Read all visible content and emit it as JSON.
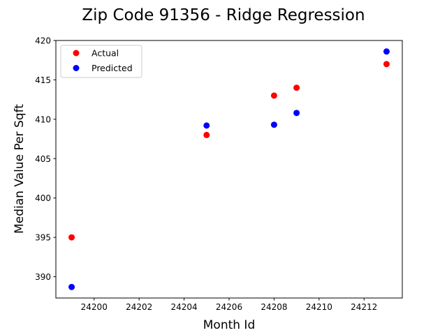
{
  "chart_data": {
    "type": "scatter",
    "title": "Zip Code 91356 - Ridge Regression",
    "xlabel": "Month Id",
    "ylabel": "Median Value Per Sqft",
    "xlim": [
      24198.3,
      24213.7
    ],
    "ylim": [
      387.3,
      420.0
    ],
    "xticks": [
      24200,
      24202,
      24204,
      24206,
      24208,
      24210,
      24212
    ],
    "yticks": [
      390,
      395,
      400,
      405,
      410,
      415,
      420
    ],
    "grid": false,
    "legend_position": "upper-left",
    "series": [
      {
        "name": "Actual",
        "color": "#ff0000",
        "points": [
          {
            "x": 24199,
            "y": 395.0
          },
          {
            "x": 24205,
            "y": 408.0
          },
          {
            "x": 24208,
            "y": 413.0
          },
          {
            "x": 24209,
            "y": 414.0
          },
          {
            "x": 24213,
            "y": 417.0
          }
        ]
      },
      {
        "name": "Predicted",
        "color": "#0000ff",
        "points": [
          {
            "x": 24199,
            "y": 388.7
          },
          {
            "x": 24205,
            "y": 409.2
          },
          {
            "x": 24208,
            "y": 409.3
          },
          {
            "x": 24209,
            "y": 410.8
          },
          {
            "x": 24213,
            "y": 418.6
          }
        ]
      }
    ]
  }
}
